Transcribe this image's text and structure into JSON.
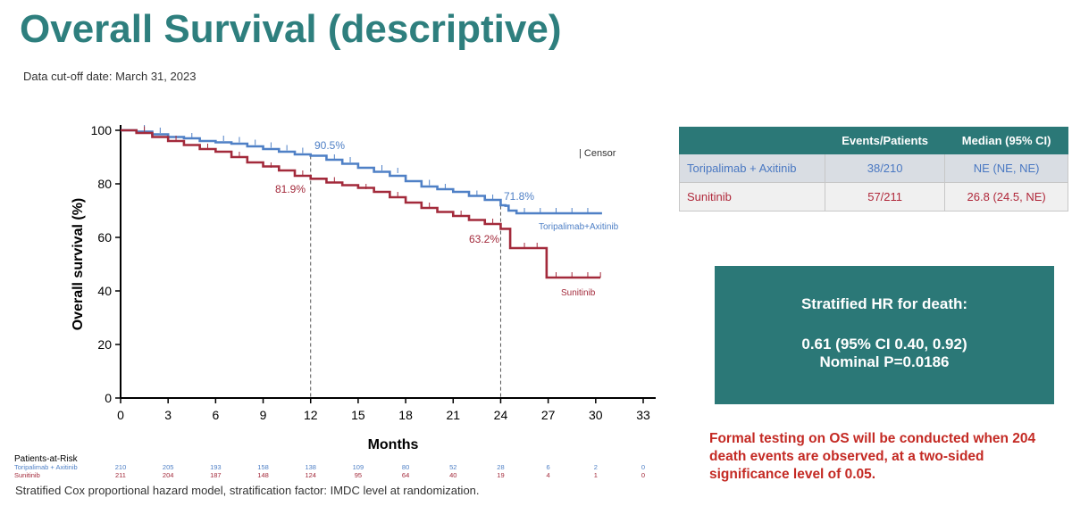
{
  "title": "Overall Survival (descriptive)",
  "cutoff": "Data cut-off date: March 31, 2023",
  "chart_data": {
    "type": "line",
    "subtype": "kaplan-meier",
    "xlabel": "Months",
    "ylabel": "Overall survival (%)",
    "xlim": [
      0,
      33
    ],
    "ylim": [
      0,
      100
    ],
    "xticks": [
      0,
      3,
      6,
      9,
      12,
      15,
      18,
      21,
      24,
      27,
      30,
      33
    ],
    "yticks": [
      0,
      20,
      40,
      60,
      80,
      100
    ],
    "censor_legend": "| Censor",
    "reference_lines_x": [
      12,
      24
    ],
    "series": [
      {
        "name": "Toripalimab+Axitinib",
        "color": "#4f80c6",
        "steps": [
          [
            0,
            100
          ],
          [
            1,
            99.5
          ],
          [
            2,
            98.5
          ],
          [
            3,
            97.5
          ],
          [
            4,
            97
          ],
          [
            5,
            96
          ],
          [
            6,
            95.5
          ],
          [
            7,
            95
          ],
          [
            8,
            94
          ],
          [
            9,
            93
          ],
          [
            10,
            92
          ],
          [
            11,
            91
          ],
          [
            12,
            90.5
          ],
          [
            13,
            89
          ],
          [
            14,
            87.5
          ],
          [
            15,
            86
          ],
          [
            16,
            84.5
          ],
          [
            17,
            83
          ],
          [
            18,
            81
          ],
          [
            19,
            79
          ],
          [
            20,
            78
          ],
          [
            21,
            77
          ],
          [
            22,
            75.5
          ],
          [
            23,
            74
          ],
          [
            24,
            72
          ],
          [
            24.3,
            71.8
          ],
          [
            24.5,
            70
          ],
          [
            25,
            69
          ],
          [
            30.4,
            69
          ]
        ],
        "censors": [
          [
            1.5,
            100
          ],
          [
            2.5,
            99
          ],
          [
            4.5,
            97
          ],
          [
            6.5,
            96
          ],
          [
            7.5,
            95.5
          ],
          [
            8.5,
            94.5
          ],
          [
            9.5,
            93.5
          ],
          [
            10.5,
            92.5
          ],
          [
            11.5,
            91.5
          ],
          [
            13.5,
            89
          ],
          [
            14.5,
            88
          ],
          [
            16.5,
            85
          ],
          [
            17.5,
            84
          ],
          [
            19.5,
            79.5
          ],
          [
            20.5,
            78
          ],
          [
            22.5,
            75.5
          ],
          [
            23.5,
            74
          ],
          [
            25.5,
            69
          ],
          [
            26.5,
            69
          ],
          [
            27.5,
            69
          ],
          [
            28.5,
            69
          ],
          [
            29.5,
            69
          ]
        ],
        "milestones": [
          {
            "x": 12,
            "y": 90.5,
            "label": "90.5%"
          },
          {
            "x": 24,
            "y": 71.8,
            "label": "71.8%"
          }
        ],
        "end_label": "Toripalimab+Axitinib"
      },
      {
        "name": "Sunitinib",
        "color": "#a32a3b",
        "steps": [
          [
            0,
            100
          ],
          [
            1,
            99
          ],
          [
            2,
            97.5
          ],
          [
            3,
            96
          ],
          [
            4,
            94.5
          ],
          [
            5,
            93
          ],
          [
            6,
            92
          ],
          [
            7,
            90
          ],
          [
            8,
            88
          ],
          [
            9,
            86.5
          ],
          [
            10,
            85
          ],
          [
            11,
            83
          ],
          [
            12,
            81.9
          ],
          [
            13,
            80.5
          ],
          [
            14,
            79.5
          ],
          [
            15,
            78.5
          ],
          [
            16,
            77
          ],
          [
            17,
            75
          ],
          [
            18,
            73
          ],
          [
            19,
            71
          ],
          [
            20,
            69.5
          ],
          [
            21,
            68
          ],
          [
            22,
            66.5
          ],
          [
            23,
            65
          ],
          [
            24,
            63.2
          ],
          [
            24.6,
            56
          ],
          [
            26.9,
            56
          ],
          [
            26.9,
            45
          ],
          [
            30.3,
            45
          ]
        ],
        "censors": [
          [
            1.5,
            99.5
          ],
          [
            3.5,
            96
          ],
          [
            5.5,
            93
          ],
          [
            7.5,
            90
          ],
          [
            9.5,
            86
          ],
          [
            11.5,
            83
          ],
          [
            13.5,
            80.5
          ],
          [
            15.5,
            78
          ],
          [
            17.5,
            75
          ],
          [
            19.5,
            71
          ],
          [
            21.5,
            68
          ],
          [
            23.5,
            65
          ],
          [
            25.5,
            56
          ],
          [
            26.3,
            56
          ],
          [
            27.5,
            45
          ],
          [
            28.5,
            45
          ],
          [
            29.5,
            45
          ],
          [
            30.3,
            45
          ]
        ],
        "milestones": [
          {
            "x": 12,
            "y": 81.9,
            "label": "81.9%"
          },
          {
            "x": 24,
            "y": 63.2,
            "label": "63.2%"
          }
        ],
        "end_label": "Sunitinib"
      }
    ],
    "at_risk": {
      "title": "Patients-at-Risk",
      "times": [
        0,
        3,
        6,
        9,
        12,
        15,
        18,
        21,
        24,
        27,
        30,
        33
      ],
      "rows": [
        {
          "label": "Toripalimab + Axitinib",
          "color": "#4f80c6",
          "values": [
            210,
            205,
            193,
            158,
            138,
            109,
            80,
            52,
            28,
            6,
            2,
            0
          ]
        },
        {
          "label": "Sunitinib",
          "color": "#a32a3b",
          "values": [
            211,
            204,
            187,
            148,
            124,
            95,
            64,
            40,
            19,
            4,
            1,
            0
          ]
        }
      ]
    }
  },
  "table": {
    "headers": [
      "",
      "Events/Patients",
      "Median (95% CI)"
    ],
    "rows": [
      {
        "arm": "Toripalimab + Axitinib",
        "events": "38/210",
        "median": "NE (NE, NE)"
      },
      {
        "arm": "Sunitinib",
        "events": "57/211",
        "median": "26.8 (24.5, NE)"
      }
    ]
  },
  "hr_box": {
    "line1": "Stratified HR for death:",
    "line2": "0.61 (95% CI 0.40, 0.92)",
    "line3": "Nominal P=0.0186"
  },
  "formal_testing": "Formal testing on OS will be conducted when 204 death events are observed, at a two-sided significance level of 0.05.",
  "footnote": "Stratified Cox proportional hazard model, stratification factor: IMDC level at randomization."
}
